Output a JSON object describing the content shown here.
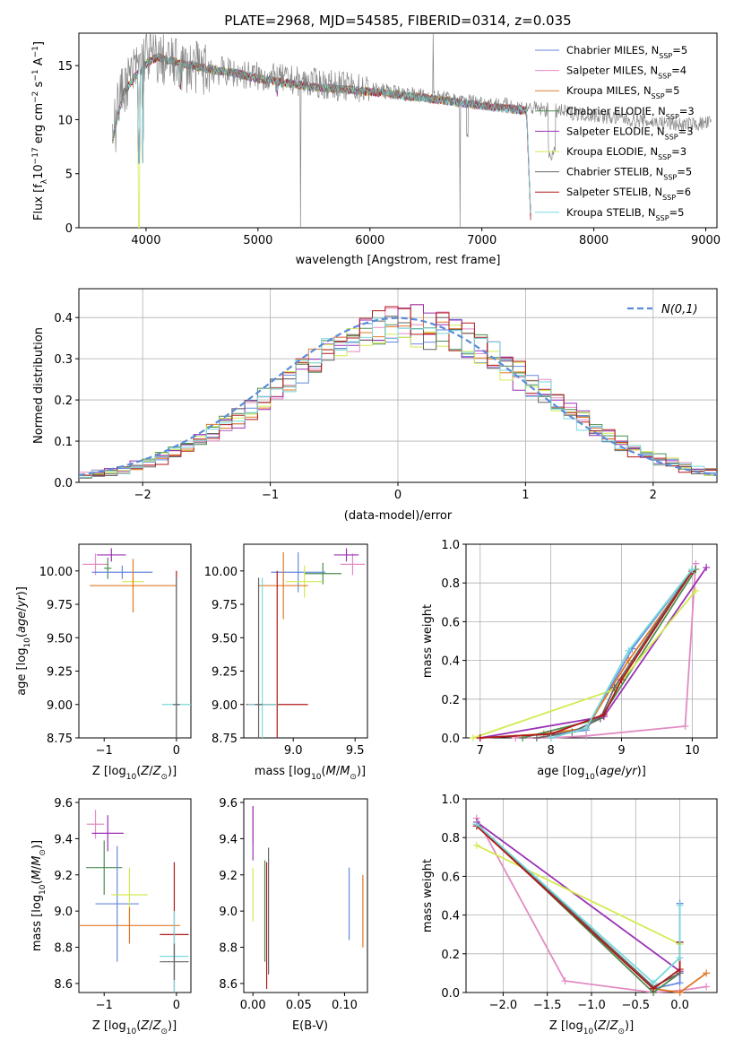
{
  "title": "PLATE=2968, MJD=54585, FIBERID=0314, z=0.035",
  "colors": {
    "chabrier_miles": "#6688dd",
    "salpeter_miles": "#e28bc3",
    "kroupa_miles": "#e07828",
    "chabrier_elodie": "#4c8c50",
    "salpeter_elodie": "#9b30b5",
    "kroupa_elodie": "#d4ea50",
    "chabrier_stelib": "#666666",
    "salpeter_stelib": "#b01818",
    "kroupa_stelib": "#78d8dc",
    "data": "#808080",
    "normal": "#5b8bd8"
  },
  "chart_data": [
    {
      "id": "spectrum",
      "type": "line",
      "xlabel": "wavelength [Angstrom, rest frame]",
      "ylabel": "Flux [f_λ10^-17 erg cm^-2 s^-1 A^-1]",
      "xlim": [
        3400,
        9100
      ],
      "ylim": [
        0,
        18
      ],
      "xticks": [
        4000,
        5000,
        6000,
        7000,
        8000,
        9000
      ],
      "yticks": [
        0,
        5,
        10,
        15
      ],
      "legend_position": "top-right",
      "legend": [
        {
          "key": "chabrier_miles",
          "label": "Chabrier MILES, N",
          "sub": "SSP",
          "val": "=5"
        },
        {
          "key": "salpeter_miles",
          "label": "Salpeter MILES, N",
          "sub": "SSP",
          "val": "=4"
        },
        {
          "key": "kroupa_miles",
          "label": "Kroupa MILES, N",
          "sub": "SSP",
          "val": "=5"
        },
        {
          "key": "chabrier_elodie",
          "label": "Chabrier ELODIE, N",
          "sub": "SSP",
          "val": "=3"
        },
        {
          "key": "salpeter_elodie",
          "label": "Salpeter ELODIE, N",
          "sub": "SSP",
          "val": "=3"
        },
        {
          "key": "kroupa_elodie",
          "label": "Kroupa ELODIE, N",
          "sub": "SSP",
          "val": "=3"
        },
        {
          "key": "chabrier_stelib",
          "label": "Chabrier STELIB, N",
          "sub": "SSP",
          "val": "=5"
        },
        {
          "key": "salpeter_stelib",
          "label": "Salpeter STELIB, N",
          "sub": "SSP",
          "val": "=6"
        },
        {
          "key": "kroupa_stelib",
          "label": "Kroupa STELIB, N",
          "sub": "SSP",
          "val": "=5"
        }
      ],
      "model_continuum": [
        [
          3700,
          8.2
        ],
        [
          3750,
          10.5
        ],
        [
          3800,
          12.5
        ],
        [
          3850,
          13.2
        ],
        [
          3900,
          14.0
        ],
        [
          3950,
          14.5
        ],
        [
          4000,
          15.2
        ],
        [
          4100,
          15.8
        ],
        [
          4300,
          15.2
        ],
        [
          4500,
          14.8
        ],
        [
          4800,
          14.3
        ],
        [
          5000,
          13.8
        ],
        [
          5500,
          13.0
        ],
        [
          6000,
          12.6
        ],
        [
          6500,
          12.0
        ],
        [
          7000,
          11.3
        ],
        [
          7400,
          10.8
        ],
        [
          7440,
          0
        ]
      ],
      "data_continuum": [
        [
          3700,
          10.0
        ],
        [
          3800,
          13.0
        ],
        [
          3900,
          14.5
        ],
        [
          4000,
          16.0
        ],
        [
          4300,
          15.0
        ],
        [
          4600,
          14.6
        ],
        [
          5000,
          14.0
        ],
        [
          5500,
          13.4
        ],
        [
          6000,
          12.8
        ],
        [
          6500,
          12.2
        ],
        [
          7000,
          11.6
        ],
        [
          7500,
          11.0
        ],
        [
          8000,
          10.4
        ],
        [
          8500,
          9.8
        ],
        [
          8800,
          9.5
        ],
        [
          9050,
          9.7
        ]
      ]
    },
    {
      "id": "residuals",
      "type": "histogram",
      "xlabel": "(data-model)/error",
      "ylabel": "Normed distribution",
      "xlim": [
        -2.5,
        2.5
      ],
      "ylim": [
        0,
        0.47
      ],
      "xticks": [
        -2,
        -1,
        0,
        1,
        2
      ],
      "yticks": [
        0.0,
        0.1,
        0.2,
        0.3,
        0.4
      ],
      "legend": "N(0,1)",
      "bin_width": 0.1,
      "bin_start": -2.5
    },
    {
      "id": "age_vs_Z",
      "type": "scatter",
      "xlabel": "Z [log10(Z/Z⊙)]",
      "ylabel": "age [log10(age/yr)]",
      "xlim": [
        -1.35,
        0.2
      ],
      "ylim": [
        8.75,
        10.2
      ],
      "xticks": [
        -1,
        0
      ],
      "yticks": [
        8.75,
        9.0,
        9.25,
        9.5,
        9.75,
        10.0
      ],
      "points": [
        {
          "key": "salpeter_miles",
          "x": -1.12,
          "y": 10.05,
          "xe": 0.18,
          "ye": 0.08
        },
        {
          "key": "salpeter_elodie",
          "x": -0.9,
          "y": 10.12,
          "xe": 0.2,
          "ye": 0.05
        },
        {
          "key": "chabrier_elodie",
          "x": -0.95,
          "y": 10.02,
          "xe": 0.05,
          "ye": 0.08
        },
        {
          "key": "chabrier_miles",
          "x": -0.75,
          "y": 9.99,
          "xe": 0.42,
          "ye": 0.05
        },
        {
          "key": "kroupa_elodie",
          "x": -0.6,
          "y": 9.92,
          "xe": 0.15,
          "ye": 0.05
        },
        {
          "key": "kroupa_miles",
          "x": -0.6,
          "y": 9.89,
          "xe": 0.6,
          "ye": 0.2
        },
        {
          "key": "salpeter_stelib",
          "x": 0.0,
          "y": 9.0,
          "xe": 0.02,
          "ye": 1.0
        },
        {
          "key": "kroupa_stelib",
          "x": 0.0,
          "y": 9.0,
          "xe": 0.2,
          "ye": 0.95
        },
        {
          "key": "chabrier_stelib",
          "x": 0.0,
          "y": 9.0,
          "xe": 0.05,
          "ye": 0.95
        }
      ]
    },
    {
      "id": "age_vs_mass",
      "type": "scatter",
      "xlabel": "mass [log10(M/M⊙)]",
      "ylabel": "",
      "xlim": [
        8.6,
        9.6
      ],
      "ylim": [
        8.75,
        10.2
      ],
      "xticks": [
        9.0,
        9.5
      ],
      "yticks": [
        8.75,
        9.0,
        9.25,
        9.5,
        9.75,
        10.0
      ],
      "points": [
        {
          "key": "salpeter_miles",
          "x": 9.48,
          "y": 10.05,
          "xe": 0.1,
          "ye": 0.08
        },
        {
          "key": "salpeter_elodie",
          "x": 9.43,
          "y": 10.12,
          "xe": 0.1,
          "ye": 0.05
        },
        {
          "key": "chabrier_elodie",
          "x": 9.24,
          "y": 9.98,
          "xe": 0.15,
          "ye": 0.08
        },
        {
          "key": "chabrier_miles",
          "x": 9.04,
          "y": 9.99,
          "xe": 0.22,
          "ye": 0.15
        },
        {
          "key": "kroupa_elodie",
          "x": 9.09,
          "y": 9.92,
          "xe": 0.15,
          "ye": 0.12
        },
        {
          "key": "kroupa_miles",
          "x": 8.92,
          "y": 9.89,
          "xe": 0.2,
          "ye": 0.25
        },
        {
          "key": "salpeter_stelib",
          "x": 8.87,
          "y": 9.0,
          "xe": 0.25,
          "ye": 1.0
        },
        {
          "key": "kroupa_stelib",
          "x": 8.75,
          "y": 9.0,
          "xe": 0.12,
          "ye": 0.95
        },
        {
          "key": "chabrier_stelib",
          "x": 8.72,
          "y": 9.0,
          "xe": 0.03,
          "ye": 0.95
        }
      ]
    },
    {
      "id": "weight_vs_age",
      "type": "line",
      "xlabel": "age [log10(age/yr)]",
      "ylabel": "mass weight",
      "xlim": [
        6.8,
        10.35
      ],
      "ylim": [
        0,
        1
      ],
      "xticks": [
        7,
        8,
        9,
        10
      ],
      "yticks": [
        0.0,
        0.2,
        0.4,
        0.6,
        0.8,
        1.0
      ],
      "series": [
        {
          "key": "chabrier_miles",
          "x": [
            7.0,
            8.0,
            8.5,
            9.15,
            10.0
          ],
          "y": [
            0.0,
            0.02,
            0.04,
            0.46,
            0.87
          ]
        },
        {
          "key": "salpeter_miles",
          "x": [
            7.5,
            8.0,
            8.5,
            9.9,
            10.05
          ],
          "y": [
            0.0,
            0.0,
            0.01,
            0.06,
            0.9
          ]
        },
        {
          "key": "kroupa_miles",
          "x": [
            7.0,
            7.9,
            8.5,
            9.1,
            10.0
          ],
          "y": [
            0.0,
            0.02,
            0.05,
            0.4,
            0.86
          ]
        },
        {
          "key": "chabrier_elodie",
          "x": [
            7.6,
            8.7,
            10.05
          ],
          "y": [
            0.0,
            0.1,
            0.87
          ]
        },
        {
          "key": "salpeter_elodie",
          "x": [
            7.0,
            8.75,
            10.2
          ],
          "y": [
            0.0,
            0.11,
            0.88
          ]
        },
        {
          "key": "kroupa_elodie",
          "x": [
            6.9,
            8.9,
            10.05
          ],
          "y": [
            0.0,
            0.25,
            0.76
          ]
        },
        {
          "key": "chabrier_stelib",
          "x": [
            7.8,
            8.3,
            8.7,
            8.9,
            10.0
          ],
          "y": [
            0.0,
            0.03,
            0.1,
            0.26,
            0.87
          ]
        },
        {
          "key": "salpeter_stelib",
          "x": [
            7.0,
            8.0,
            8.75,
            9.0,
            10.0
          ],
          "y": [
            0.0,
            0.02,
            0.12,
            0.3,
            0.86
          ]
        },
        {
          "key": "kroupa_stelib",
          "x": [
            8.0,
            8.5,
            9.1,
            10.0
          ],
          "y": [
            0.0,
            0.05,
            0.45,
            0.87
          ]
        }
      ]
    },
    {
      "id": "mass_vs_Z",
      "type": "scatter",
      "xlabel": "Z [log10(Z/Z⊙)]",
      "ylabel": "mass [log10(M/M⊙)]",
      "xlim": [
        -1.35,
        0.2
      ],
      "ylim": [
        8.55,
        9.62
      ],
      "xticks": [
        -1,
        0
      ],
      "yticks": [
        8.6,
        8.8,
        9.0,
        9.2,
        9.4,
        9.6
      ],
      "points": [
        {
          "key": "salpeter_miles",
          "x": -1.12,
          "y": 9.48,
          "xe": 0.12,
          "ye": 0.08
        },
        {
          "key": "salpeter_elodie",
          "x": -0.95,
          "y": 9.43,
          "xe": 0.22,
          "ye": 0.1
        },
        {
          "key": "chabrier_elodie",
          "x": -1.0,
          "y": 9.24,
          "xe": 0.25,
          "ye": 0.15
        },
        {
          "key": "chabrier_miles",
          "x": -0.82,
          "y": 9.04,
          "xe": 0.3,
          "ye": 0.32
        },
        {
          "key": "kroupa_elodie",
          "x": -0.65,
          "y": 9.09,
          "xe": 0.25,
          "ye": 0.15
        },
        {
          "key": "kroupa_miles",
          "x": -0.65,
          "y": 8.92,
          "xe": 0.7,
          "ye": 0.1
        },
        {
          "key": "salpeter_stelib",
          "x": -0.03,
          "y": 8.87,
          "xe": 0.2,
          "ye": 0.4
        },
        {
          "key": "kroupa_stelib",
          "x": -0.03,
          "y": 8.75,
          "xe": 0.2,
          "ye": 0.25
        },
        {
          "key": "chabrier_stelib",
          "x": -0.03,
          "y": 8.72,
          "xe": 0.2,
          "ye": 0.1
        }
      ]
    },
    {
      "id": "mass_vs_ebv",
      "type": "scatter",
      "xlabel": "E(B-V)",
      "ylabel": "",
      "xlim": [
        -0.01,
        0.125
      ],
      "ylim": [
        8.55,
        9.62
      ],
      "xticks": [
        0.0,
        0.05,
        0.1
      ],
      "xticklabels": [
        "0.00",
        "0.05",
        "0.10"
      ],
      "yticks": [
        8.6,
        8.8,
        9.0,
        9.2,
        9.4,
        9.6
      ],
      "points": [
        {
          "key": "salpeter_miles",
          "x": 0.0,
          "y": 9.48,
          "xe": 0,
          "ye": 0.1
        },
        {
          "key": "salpeter_elodie",
          "x": 0.0,
          "y": 9.43,
          "xe": 0,
          "ye": 0.15
        },
        {
          "key": "kroupa_elodie",
          "x": 0.0,
          "y": 9.09,
          "xe": 0,
          "ye": 0.15
        },
        {
          "key": "chabrier_elodie",
          "x": 0.013,
          "y": 9.0,
          "xe": 0,
          "ye": 0.28
        },
        {
          "key": "salpeter_stelib",
          "x": 0.015,
          "y": 8.92,
          "xe": 0,
          "ye": 0.35
        },
        {
          "key": "chabrier_stelib",
          "x": 0.017,
          "y": 9.0,
          "xe": 0,
          "ye": 0.35
        },
        {
          "key": "chabrier_miles",
          "x": 0.105,
          "y": 9.04,
          "xe": 0,
          "ye": 0.2
        },
        {
          "key": "kroupa_miles",
          "x": 0.12,
          "y": 9.0,
          "xe": 0,
          "ye": 0.2
        }
      ]
    },
    {
      "id": "weight_vs_Z",
      "type": "line",
      "xlabel": "Z [log10(Z/Z⊙)]",
      "ylabel": "mass weight",
      "xlim": [
        -2.42,
        0.42
      ],
      "ylim": [
        0,
        1
      ],
      "xticks": [
        -2.0,
        -1.5,
        -1.0,
        -0.5,
        0.0
      ],
      "xticklabels": [
        "−2.0",
        "−1.5",
        "−1.0",
        "−0.5",
        "0.0"
      ],
      "yticks": [
        0.0,
        0.2,
        0.4,
        0.6,
        0.8,
        1.0
      ],
      "series": [
        {
          "key": "chabrier_miles",
          "x": [
            -2.3,
            -0.3,
            0.0,
            0.0
          ],
          "y": [
            0.87,
            0.02,
            0.05,
            0.46
          ]
        },
        {
          "key": "salpeter_miles",
          "x": [
            -2.3,
            -1.3,
            -0.3,
            0.0,
            0.3
          ],
          "y": [
            0.9,
            0.06,
            0.0,
            0.01,
            0.03
          ]
        },
        {
          "key": "kroupa_miles",
          "x": [
            -2.3,
            -0.3,
            0.0,
            0.3
          ],
          "y": [
            0.86,
            0.02,
            0.0,
            0.1
          ]
        },
        {
          "key": "chabrier_elodie",
          "x": [
            -2.3,
            -0.3,
            0.0
          ],
          "y": [
            0.87,
            0.0,
            0.1
          ]
        },
        {
          "key": "salpeter_elodie",
          "x": [
            -2.3,
            0.0
          ],
          "y": [
            0.88,
            0.11
          ]
        },
        {
          "key": "kroupa_elodie",
          "x": [
            -2.3,
            0.0
          ],
          "y": [
            0.76,
            0.25
          ]
        },
        {
          "key": "chabrier_stelib",
          "x": [
            -2.3,
            -0.3,
            0.0,
            0.0
          ],
          "y": [
            0.87,
            0.03,
            0.1,
            0.26
          ]
        },
        {
          "key": "salpeter_stelib",
          "x": [
            -2.3,
            -0.3,
            0.0,
            0.0
          ],
          "y": [
            0.86,
            0.02,
            0.12,
            0.26
          ]
        },
        {
          "key": "kroupa_stelib",
          "x": [
            -2.3,
            -0.3,
            0.0,
            0.0
          ],
          "y": [
            0.87,
            0.05,
            0.18,
            0.45
          ]
        }
      ]
    }
  ]
}
